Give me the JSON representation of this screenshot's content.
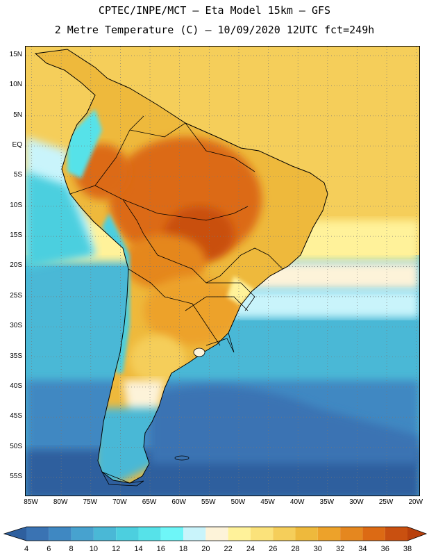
{
  "header": {
    "line1": "CPTEC/INPE/MCT –  Eta Model 15km – GFS",
    "line2": "2 Metre Temperature (C) – 10/09/2020 12UTC fct=249h"
  },
  "map": {
    "lat_labels": [
      "15N",
      "10N",
      "5N",
      "EQ",
      "5S",
      "10S",
      "15S",
      "20S",
      "25S",
      "30S",
      "35S",
      "40S",
      "45S",
      "50S",
      "55S"
    ],
    "lon_labels": [
      "85W",
      "80W",
      "75W",
      "70W",
      "65W",
      "60W",
      "55W",
      "50W",
      "45W",
      "40W",
      "35W",
      "30W",
      "25W",
      "20W"
    ],
    "extent": {
      "lon_min": -86,
      "lon_max": -19.5,
      "lat_min": -58,
      "lat_max": 16.5
    }
  },
  "legend": {
    "levels": [
      "4",
      "6",
      "8",
      "10",
      "12",
      "14",
      "16",
      "18",
      "20",
      "22",
      "24",
      "26",
      "28",
      "30",
      "32",
      "34",
      "36",
      "38"
    ],
    "colors": [
      "#2e5f9e",
      "#3a73b3",
      "#3f88c2",
      "#47a2cf",
      "#4ab8d6",
      "#4ccfdf",
      "#56e2e9",
      "#6ef6f8",
      "#c9f4fb",
      "#fdf3d9",
      "#fff29a",
      "#fbe27a",
      "#f5ce5a",
      "#eeb93c",
      "#eda22a",
      "#e5871f",
      "#dc6a14",
      "#c95010",
      "#b8400c"
    ]
  }
}
